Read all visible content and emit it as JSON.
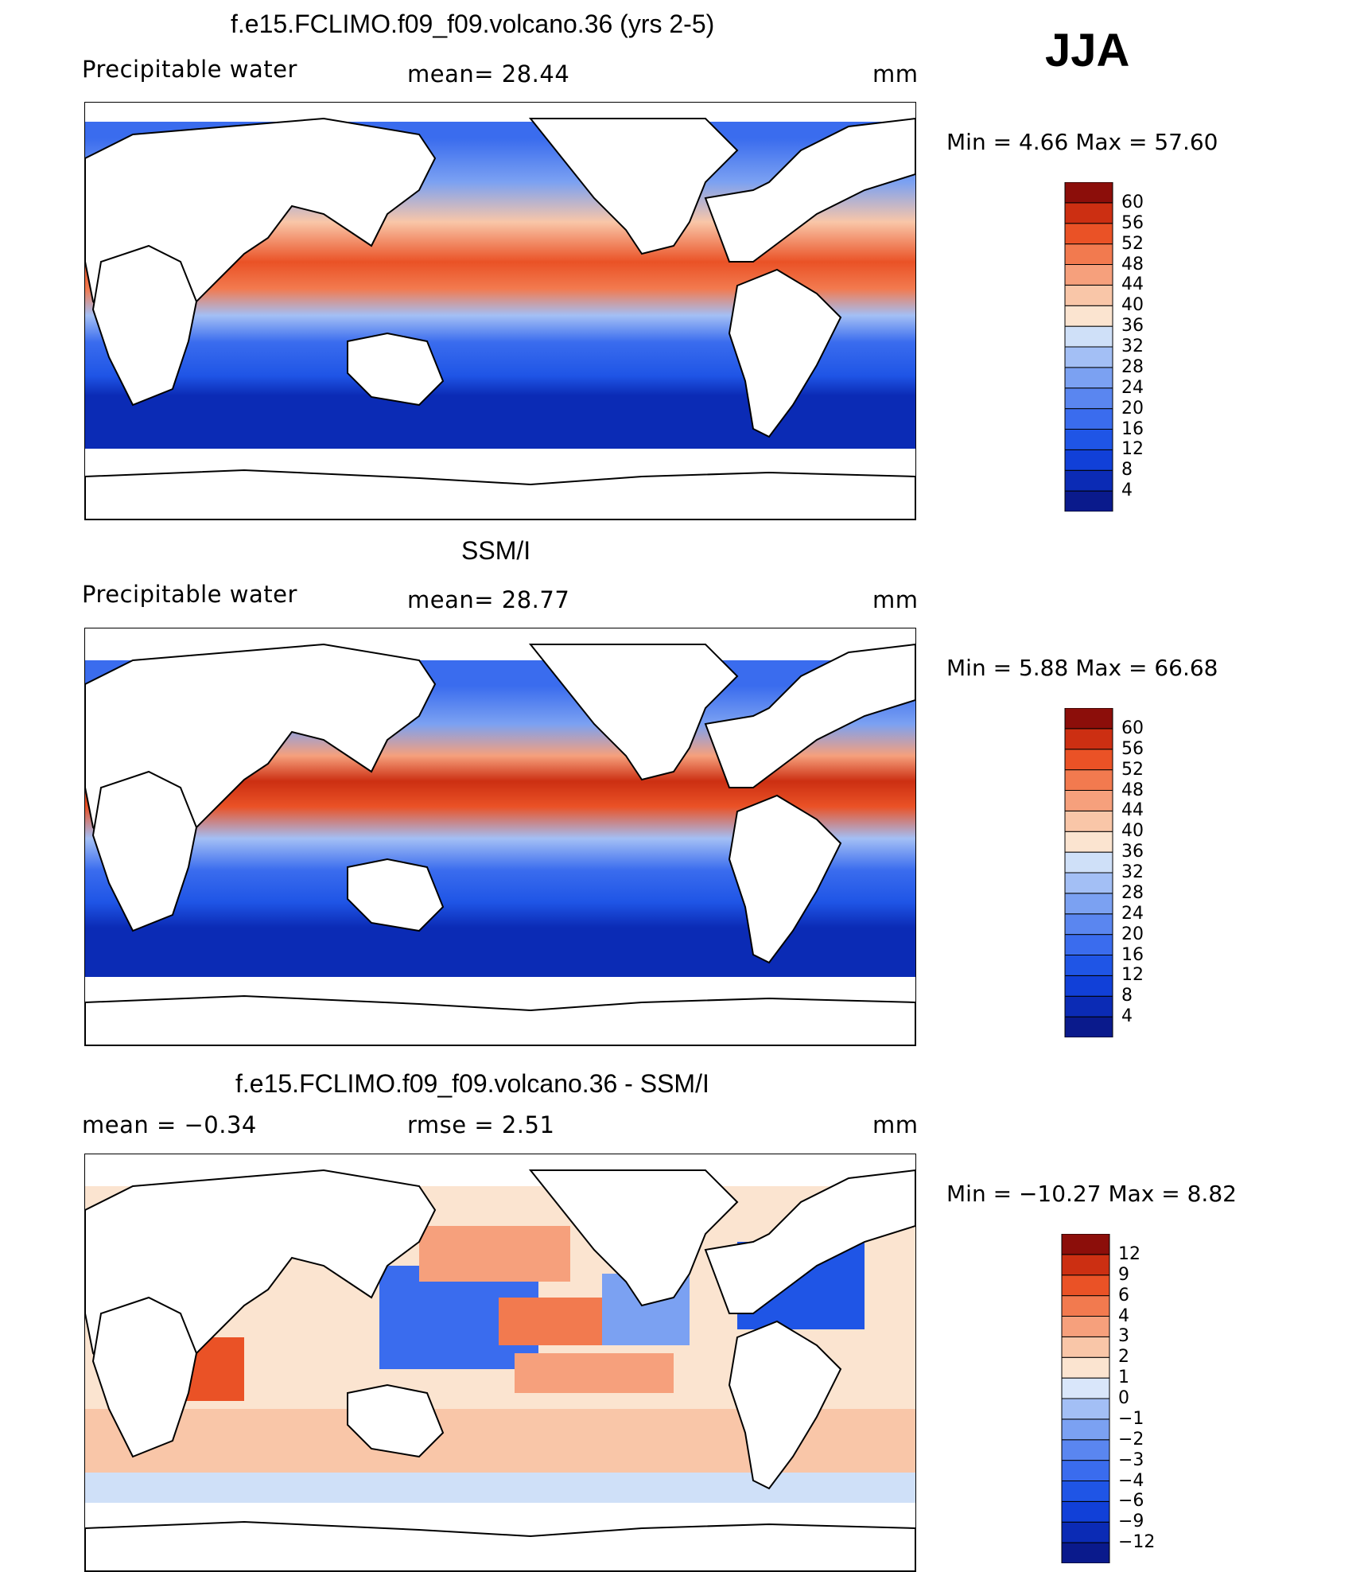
{
  "season": "JJA",
  "panels": [
    {
      "title": "f.e15.FCLIMO.f09_f09.volcano.36 (yrs 2-5)",
      "left_label": "Precipitable water",
      "center_label": "mean=   28.44",
      "units": "mm",
      "minmax": "Min  =     4.66  Max  =    57.60",
      "colorbar_labels": [
        "60",
        "56",
        "52",
        "48",
        "44",
        "40",
        "36",
        "32",
        "28",
        "24",
        "20",
        "16",
        "12",
        "8",
        "4"
      ]
    },
    {
      "title": "SSM/I",
      "left_label": "Precipitable water",
      "center_label": "mean=   28.77",
      "units": "mm",
      "minmax": "Min  =     5.88  Max  =    66.68",
      "colorbar_labels": [
        "60",
        "56",
        "52",
        "48",
        "44",
        "40",
        "36",
        "32",
        "28",
        "24",
        "20",
        "16",
        "12",
        "8",
        "4"
      ]
    },
    {
      "title": "f.e15.FCLIMO.f09_f09.volcano.36 - SSM/I",
      "left_label": "mean  =   −0.34",
      "center_label": "rmse  =     2.51",
      "units": "mm",
      "minmax": "Min  = −10.27  Max  =      8.82",
      "colorbar_labels": [
        "12",
        "9",
        "6",
        "4",
        "3",
        "2",
        "1",
        "0",
        "−1",
        "−2",
        "−3",
        "−4",
        "−6",
        "−9",
        "−12"
      ]
    }
  ],
  "colors": {
    "pw_scale": [
      "#0a1a8c",
      "#0b2bb5",
      "#1140d8",
      "#1f55e6",
      "#3a6cee",
      "#5a86f0",
      "#7ba1f2",
      "#a3bff5",
      "#cfe0f8",
      "#fbe4d0",
      "#f9c6a8",
      "#f6a07c",
      "#f27a4f",
      "#ea5226",
      "#cc2f12",
      "#8c0e0a"
    ],
    "diff_scale": [
      "#0a1a8c",
      "#0b2bb5",
      "#1140d8",
      "#1f55e6",
      "#3a6cee",
      "#5a86f0",
      "#7ba1f2",
      "#a3bff5",
      "#d9e6fa",
      "#fbe4d0",
      "#f9c6a8",
      "#f6a07c",
      "#f27a4f",
      "#ea5226",
      "#cc2f12",
      "#8c0e0a"
    ]
  }
}
